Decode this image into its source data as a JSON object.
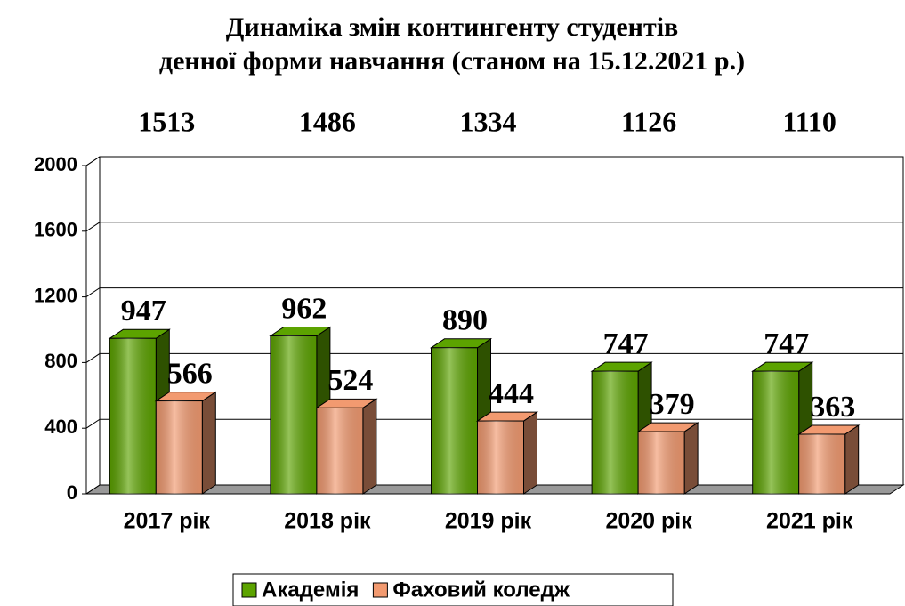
{
  "chart_data": {
    "type": "bar3d",
    "title": [
      "Динаміка змін контингенту студентів",
      "денної форми навчання (станом на 15.12.2021 р.)"
    ],
    "categories": [
      "2017  рік",
      "2018  рік",
      "2019  рік",
      "2020  рік",
      "2021  рік"
    ],
    "totals": [
      1513,
      1486,
      1334,
      1126,
      1110
    ],
    "series": [
      {
        "name": "Академія",
        "color": "#5ca300",
        "values": [
          947,
          962,
          890,
          747,
          747
        ]
      },
      {
        "name": "Фаховий коледж",
        "color": "#f29a70",
        "values": [
          566,
          524,
          444,
          379,
          363
        ]
      }
    ],
    "ylim": [
      0,
      2000
    ],
    "yticks": [
      0,
      400,
      800,
      1200,
      1600,
      2000
    ],
    "grid": true,
    "legend": "bottom"
  }
}
